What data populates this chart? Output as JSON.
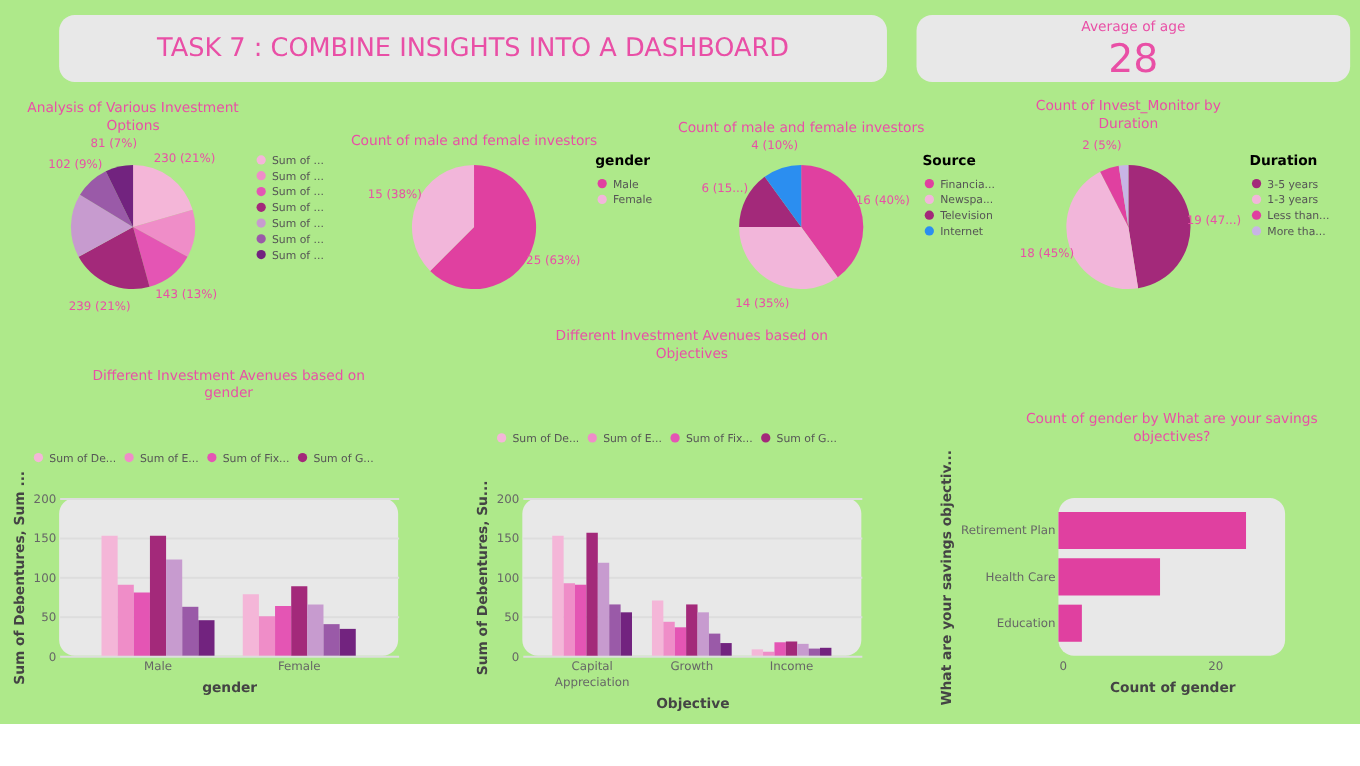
{
  "chart_data": [
    {
      "type": "other",
      "title": "TASK 7 : COMBINE INSIGHTS INTO A DASHBOARD"
    },
    {
      "type": "other",
      "title": "Average of age",
      "annotations": [
        "28"
      ]
    },
    {
      "type": "pie",
      "title": "Analysis of Various Investment Options",
      "categories": [
        "Sum of ...",
        "Sum of ...",
        "Sum of ...",
        "Sum of ...",
        "Sum of ...",
        "Sum of ...",
        "Sum of ..."
      ],
      "values": [
        230,
        140,
        143,
        239,
        187,
        102,
        81
      ],
      "colors": [
        "#f4b6d8",
        "#ef8dc8",
        "#e455b4",
        "#a3297a",
        "#c79bcf",
        "#9a5aa8",
        "#72237f"
      ],
      "value_labels": [
        "230 (21%)",
        null,
        "143 (13%)",
        "239 (21%)",
        null,
        "102 (9%)",
        "81 (7%)"
      ],
      "legend": "right"
    },
    {
      "type": "pie",
      "title": "Count of male and female investors",
      "legend_title": "gender",
      "categories": [
        "Male",
        "Female"
      ],
      "values": [
        25,
        15
      ],
      "colors": [
        "#e040a0",
        "#f2b6da"
      ],
      "value_labels": [
        "25 (63%)",
        "15 (38%)"
      ],
      "legend": "right"
    },
    {
      "type": "pie",
      "title": "Count of male and female investors",
      "legend_title": "Source",
      "categories": [
        "Financia...",
        "Newspa...",
        "Television",
        "Internet"
      ],
      "values": [
        16,
        14,
        6,
        4
      ],
      "colors": [
        "#e040a0",
        "#f2b6da",
        "#a3297a",
        "#2b8ef0"
      ],
      "value_labels": [
        "16 (40%)",
        "14 (35%)",
        "6 (15...)",
        "4 (10%)"
      ],
      "legend": "right"
    },
    {
      "type": "pie",
      "title": "Count of Invest_Monitor by Duration",
      "legend_title": "Duration",
      "categories": [
        "3-5 years",
        "1-3 years",
        "Less than...",
        "More tha..."
      ],
      "values": [
        19,
        18,
        2,
        1
      ],
      "colors": [
        "#a3297a",
        "#f2b6da",
        "#e040a0",
        "#c8b4e6"
      ],
      "value_labels": [
        "19 (47...)",
        "18 (45%)",
        "2 (5%)",
        null
      ],
      "legend": "right"
    },
    {
      "type": "bar",
      "title": "Different Investment Avenues based on gender",
      "xlabel": "gender",
      "ylabel": "Sum of Debentures, Sum ...",
      "categories": [
        "Male",
        "Female"
      ],
      "ylim": [
        0,
        200
      ],
      "yticks": [
        0,
        50,
        100,
        150,
        200
      ],
      "grid": "y",
      "legend": "top left",
      "series": [
        {
          "name": "Sum of De...",
          "color": "#f4b6d8",
          "values": [
            152,
            78
          ]
        },
        {
          "name": "Sum of E...",
          "color": "#ef8dc8",
          "values": [
            90,
            50
          ]
        },
        {
          "name": "Sum of Fix...",
          "color": "#e455b4",
          "values": [
            80,
            63
          ]
        },
        {
          "name": "Sum of G...",
          "color": "#a3297a",
          "values": [
            152,
            88
          ]
        },
        {
          "color": "#c79bcf",
          "values": [
            122,
            65
          ]
        },
        {
          "color": "#9a5aa8",
          "values": [
            62,
            40
          ]
        },
        {
          "color": "#72237f",
          "values": [
            45,
            34
          ]
        }
      ]
    },
    {
      "type": "bar",
      "title": "Different Investment Avenues based on Objectives",
      "xlabel": "Objective",
      "ylabel": "Sum of Debentures, Su...",
      "categories": [
        "Capital Appreciation",
        "Growth",
        "Income"
      ],
      "ylim": [
        0,
        200
      ],
      "yticks": [
        0,
        50,
        100,
        150,
        200
      ],
      "grid": "y",
      "legend": "top left",
      "series": [
        {
          "name": "Sum of De...",
          "color": "#f4b6d8",
          "values": [
            152,
            70,
            8
          ]
        },
        {
          "name": "Sum of E...",
          "color": "#ef8dc8",
          "values": [
            92,
            43,
            5
          ]
        },
        {
          "name": "Sum of Fix...",
          "color": "#e455b4",
          "values": [
            90,
            36,
            17
          ]
        },
        {
          "name": "Sum of G...",
          "color": "#a3297a",
          "values": [
            156,
            65,
            18
          ]
        },
        {
          "color": "#c79bcf",
          "values": [
            118,
            55,
            15
          ]
        },
        {
          "color": "#9a5aa8",
          "values": [
            65,
            28,
            9
          ]
        },
        {
          "color": "#72237f",
          "values": [
            55,
            16,
            10
          ]
        }
      ]
    },
    {
      "type": "bar",
      "orientation": "horizontal",
      "title": "Count of gender by What are your savings objectives?",
      "xlabel": "Count of gender",
      "ylabel": "What are your savings objectiv...",
      "categories": [
        "Retirement Plan",
        "Health Care",
        "Education"
      ],
      "values": [
        24,
        13,
        3
      ],
      "color": "#e040a0",
      "xlim": [
        0,
        29
      ],
      "xticks": [
        0,
        20
      ]
    }
  ]
}
